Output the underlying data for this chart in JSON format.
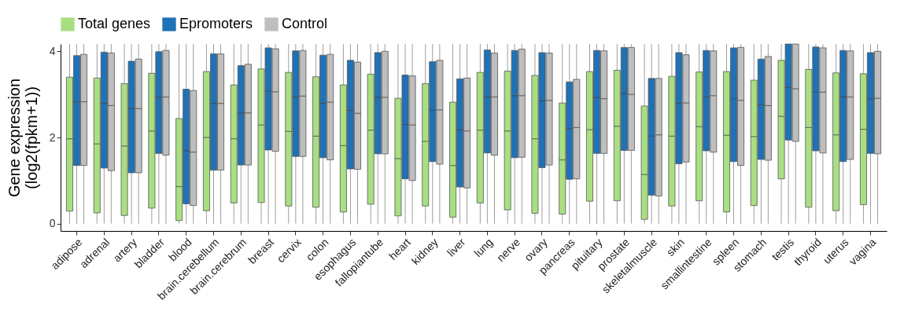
{
  "chart_data": {
    "type": "box",
    "ylabel": "Gene expression\n(log2(fpkm+1))",
    "legend": "top",
    "grid": false,
    "categories": [
      "adipose",
      "adrenal",
      "artery",
      "bladder",
      "blood",
      "brain.cerebellum",
      "brain.cerebrum",
      "breast",
      "cervix",
      "colon",
      "esophagus",
      "fallopiantube",
      "heart",
      "kidney",
      "liver",
      "lung",
      "nerve",
      "ovary",
      "pancreas",
      "pituitary",
      "prostate",
      "skeletalmuscle",
      "skin",
      "smallintestine",
      "spleen",
      "stomach",
      "testis",
      "thyroid",
      "uterus",
      "vagina"
    ],
    "ylim": [
      -0.17,
      4.17
    ],
    "yticks": [
      0,
      2,
      4
    ],
    "series": [
      {
        "name": "Total genes",
        "color": "#a9df83",
        "boxes": [
          {
            "low": 0,
            "q1": 0.29,
            "median": 1.97,
            "q3": 3.4,
            "high": 4.17
          },
          {
            "low": 0,
            "q1": 0.25,
            "median": 1.85,
            "q3": 3.38,
            "high": 4.17
          },
          {
            "low": 0,
            "q1": 0.19,
            "median": 1.8,
            "q3": 3.25,
            "high": 4.17
          },
          {
            "low": 0,
            "q1": 0.36,
            "median": 2.15,
            "q3": 3.49,
            "high": 4.17
          },
          {
            "low": 0,
            "q1": 0.07,
            "median": 0.86,
            "q3": 2.44,
            "high": 4.17
          },
          {
            "low": 0,
            "q1": 0.3,
            "median": 2.0,
            "q3": 3.53,
            "high": 4.17
          },
          {
            "low": 0,
            "q1": 0.48,
            "median": 1.97,
            "q3": 3.22,
            "high": 4.17
          },
          {
            "low": 0,
            "q1": 0.49,
            "median": 2.29,
            "q3": 3.59,
            "high": 4.17
          },
          {
            "low": 0,
            "q1": 0.41,
            "median": 2.14,
            "q3": 3.51,
            "high": 4.17
          },
          {
            "low": 0,
            "q1": 0.38,
            "median": 2.03,
            "q3": 3.41,
            "high": 4.17
          },
          {
            "low": 0,
            "q1": 0.27,
            "median": 1.81,
            "q3": 3.22,
            "high": 4.17
          },
          {
            "low": 0,
            "q1": 0.45,
            "median": 2.17,
            "q3": 3.47,
            "high": 4.17
          },
          {
            "low": 0,
            "q1": 0.18,
            "median": 1.51,
            "q3": 2.91,
            "high": 4.17
          },
          {
            "low": 0,
            "q1": 0.41,
            "median": 1.91,
            "q3": 3.25,
            "high": 4.17
          },
          {
            "low": 0,
            "q1": 0.15,
            "median": 1.35,
            "q3": 2.82,
            "high": 4.17
          },
          {
            "low": 0,
            "q1": 0.48,
            "median": 2.17,
            "q3": 3.51,
            "high": 4.17
          },
          {
            "low": 0,
            "q1": 0.32,
            "median": 2.15,
            "q3": 3.54,
            "high": 4.17
          },
          {
            "low": 0,
            "q1": 0.24,
            "median": 1.97,
            "q3": 3.44,
            "high": 4.17
          },
          {
            "low": 0,
            "q1": 0.22,
            "median": 1.48,
            "q3": 2.8,
            "high": 4.17
          },
          {
            "low": 0,
            "q1": 0.52,
            "median": 2.18,
            "q3": 3.53,
            "high": 4.17
          },
          {
            "low": 0,
            "q1": 0.53,
            "median": 2.26,
            "q3": 3.56,
            "high": 4.17
          },
          {
            "low": 0,
            "q1": 0.1,
            "median": 1.14,
            "q3": 2.73,
            "high": 4.17
          },
          {
            "low": 0,
            "q1": 0.41,
            "median": 2.03,
            "q3": 3.42,
            "high": 4.17
          },
          {
            "low": 0,
            "q1": 0.53,
            "median": 2.25,
            "q3": 3.52,
            "high": 4.17
          },
          {
            "low": 0,
            "q1": 0.27,
            "median": 2.05,
            "q3": 3.53,
            "high": 4.17
          },
          {
            "low": 0,
            "q1": 0.42,
            "median": 2.02,
            "q3": 3.33,
            "high": 4.17
          },
          {
            "low": 0,
            "q1": 1.04,
            "median": 2.49,
            "q3": 3.79,
            "high": 4.17
          },
          {
            "low": 0,
            "q1": 0.38,
            "median": 2.23,
            "q3": 3.58,
            "high": 4.17
          },
          {
            "low": 0,
            "q1": 0.3,
            "median": 2.06,
            "q3": 3.5,
            "high": 4.17
          },
          {
            "low": 0,
            "q1": 0.44,
            "median": 2.19,
            "q3": 3.48,
            "high": 4.17
          }
        ]
      },
      {
        "name": "Epromoters",
        "color": "#1f72b6",
        "boxes": [
          {
            "low": 0,
            "q1": 1.35,
            "median": 2.83,
            "q3": 3.9,
            "high": 4.17
          },
          {
            "low": 0,
            "q1": 1.29,
            "median": 2.79,
            "q3": 3.98,
            "high": 4.17
          },
          {
            "low": 0,
            "q1": 1.18,
            "median": 2.67,
            "q3": 3.77,
            "high": 4.17
          },
          {
            "low": 0,
            "q1": 1.63,
            "median": 2.93,
            "q3": 3.99,
            "high": 4.17
          },
          {
            "low": 0,
            "q1": 0.46,
            "median": 1.69,
            "q3": 3.12,
            "high": 4.17
          },
          {
            "low": 0,
            "q1": 1.24,
            "median": 2.79,
            "q3": 3.94,
            "high": 4.17
          },
          {
            "low": 0,
            "q1": 1.36,
            "median": 2.57,
            "q3": 3.67,
            "high": 4.17
          },
          {
            "low": 0,
            "q1": 1.71,
            "median": 3.08,
            "q3": 4.08,
            "high": 4.17
          },
          {
            "low": 0,
            "q1": 1.56,
            "median": 2.94,
            "q3": 4.01,
            "high": 4.17
          },
          {
            "low": 0,
            "q1": 1.53,
            "median": 2.79,
            "q3": 3.91,
            "high": 4.17
          },
          {
            "low": 0,
            "q1": 1.27,
            "median": 2.63,
            "q3": 3.79,
            "high": 4.17
          },
          {
            "low": 0,
            "q1": 1.62,
            "median": 2.93,
            "q3": 3.97,
            "high": 4.17
          },
          {
            "low": 0,
            "q1": 1.04,
            "median": 2.3,
            "q3": 3.45,
            "high": 4.17
          },
          {
            "low": 0,
            "q1": 1.44,
            "median": 2.64,
            "q3": 3.76,
            "high": 4.17
          },
          {
            "low": 0,
            "q1": 0.85,
            "median": 2.18,
            "q3": 3.36,
            "high": 4.17
          },
          {
            "low": 0,
            "q1": 1.64,
            "median": 2.94,
            "q3": 4.03,
            "high": 4.17
          },
          {
            "low": 0,
            "q1": 1.53,
            "median": 2.97,
            "q3": 4.02,
            "high": 4.17
          },
          {
            "low": 0,
            "q1": 1.3,
            "median": 2.85,
            "q3": 3.97,
            "high": 4.17
          },
          {
            "low": 0,
            "q1": 1.03,
            "median": 2.21,
            "q3": 3.29,
            "high": 4.17
          },
          {
            "low": 0,
            "q1": 1.63,
            "median": 2.93,
            "q3": 4.02,
            "high": 4.17
          },
          {
            "low": 0,
            "q1": 1.7,
            "median": 3.02,
            "q3": 4.09,
            "high": 4.17
          },
          {
            "low": 0,
            "q1": 0.66,
            "median": 2.03,
            "q3": 3.37,
            "high": 4.17
          },
          {
            "low": 0,
            "q1": 1.39,
            "median": 2.79,
            "q3": 3.97,
            "high": 4.17
          },
          {
            "low": 0,
            "q1": 1.69,
            "median": 2.94,
            "q3": 4.02,
            "high": 4.17
          },
          {
            "low": 0,
            "q1": 1.44,
            "median": 2.9,
            "q3": 4.08,
            "high": 4.17
          },
          {
            "low": 0,
            "q1": 1.49,
            "median": 2.76,
            "q3": 3.82,
            "high": 4.17
          },
          {
            "low": 0,
            "q1": 1.94,
            "median": 3.16,
            "q3": 4.17,
            "high": 4.17
          },
          {
            "low": 0,
            "q1": 1.69,
            "median": 3.05,
            "q3": 4.1,
            "high": 4.17
          },
          {
            "low": 0,
            "q1": 1.44,
            "median": 2.94,
            "q3": 4.02,
            "high": 4.17
          },
          {
            "low": 0,
            "q1": 1.63,
            "median": 2.9,
            "q3": 3.97,
            "high": 4.17
          }
        ]
      },
      {
        "name": "Control",
        "color": "#bebebe",
        "boxes": [
          {
            "low": 0,
            "q1": 1.35,
            "median": 2.83,
            "q3": 3.93,
            "high": 4.17
          },
          {
            "low": 0,
            "q1": 1.23,
            "median": 2.74,
            "q3": 3.96,
            "high": 4.17
          },
          {
            "low": 0,
            "q1": 1.18,
            "median": 2.67,
            "q3": 3.82,
            "high": 4.17
          },
          {
            "low": 0,
            "q1": 1.59,
            "median": 2.94,
            "q3": 4.02,
            "high": 4.17
          },
          {
            "low": 0,
            "q1": 0.42,
            "median": 1.66,
            "q3": 3.09,
            "high": 4.17
          },
          {
            "low": 0,
            "q1": 1.24,
            "median": 2.79,
            "q3": 3.94,
            "high": 4.17
          },
          {
            "low": 0,
            "q1": 1.36,
            "median": 2.57,
            "q3": 3.7,
            "high": 4.17
          },
          {
            "low": 0,
            "q1": 1.68,
            "median": 3.06,
            "q3": 4.06,
            "high": 4.17
          },
          {
            "low": 0,
            "q1": 1.56,
            "median": 2.96,
            "q3": 4.02,
            "high": 4.17
          },
          {
            "low": 0,
            "q1": 1.48,
            "median": 2.82,
            "q3": 3.93,
            "high": 4.17
          },
          {
            "low": 0,
            "q1": 1.26,
            "median": 2.56,
            "q3": 3.75,
            "high": 4.17
          },
          {
            "low": 0,
            "q1": 1.62,
            "median": 2.93,
            "q3": 4.0,
            "high": 4.17
          },
          {
            "low": 0,
            "q1": 1.0,
            "median": 2.29,
            "q3": 3.43,
            "high": 4.17
          },
          {
            "low": 0,
            "q1": 1.38,
            "median": 2.64,
            "q3": 3.79,
            "high": 4.17
          },
          {
            "low": 0,
            "q1": 0.83,
            "median": 2.15,
            "q3": 3.38,
            "high": 4.17
          },
          {
            "low": 0,
            "q1": 1.59,
            "median": 2.94,
            "q3": 3.96,
            "high": 4.17
          },
          {
            "low": 0,
            "q1": 1.54,
            "median": 2.97,
            "q3": 4.05,
            "high": 4.17
          },
          {
            "low": 0,
            "q1": 1.36,
            "median": 2.86,
            "q3": 3.96,
            "high": 4.17
          },
          {
            "low": 0,
            "q1": 1.04,
            "median": 2.23,
            "q3": 3.35,
            "high": 4.17
          },
          {
            "low": 0,
            "q1": 1.63,
            "median": 2.9,
            "q3": 4.01,
            "high": 4.17
          },
          {
            "low": 0,
            "q1": 1.7,
            "median": 3.0,
            "q3": 4.09,
            "high": 4.17
          },
          {
            "low": 0,
            "q1": 0.64,
            "median": 2.06,
            "q3": 3.37,
            "high": 4.17
          },
          {
            "low": 0,
            "q1": 1.43,
            "median": 2.8,
            "q3": 3.92,
            "high": 4.17
          },
          {
            "low": 0,
            "q1": 1.66,
            "median": 2.97,
            "q3": 4.01,
            "high": 4.17
          },
          {
            "low": 0,
            "q1": 1.35,
            "median": 2.86,
            "q3": 4.09,
            "high": 4.17
          },
          {
            "low": 0,
            "q1": 1.47,
            "median": 2.74,
            "q3": 3.88,
            "high": 4.17
          },
          {
            "low": 0,
            "q1": 1.91,
            "median": 3.13,
            "q3": 4.17,
            "high": 4.17
          },
          {
            "low": 0,
            "q1": 1.64,
            "median": 3.05,
            "q3": 4.08,
            "high": 4.17
          },
          {
            "low": 0,
            "q1": 1.49,
            "median": 2.94,
            "q3": 4.01,
            "high": 4.17
          },
          {
            "low": 0,
            "q1": 1.62,
            "median": 2.91,
            "q3": 4.0,
            "high": 4.17
          }
        ]
      }
    ]
  }
}
